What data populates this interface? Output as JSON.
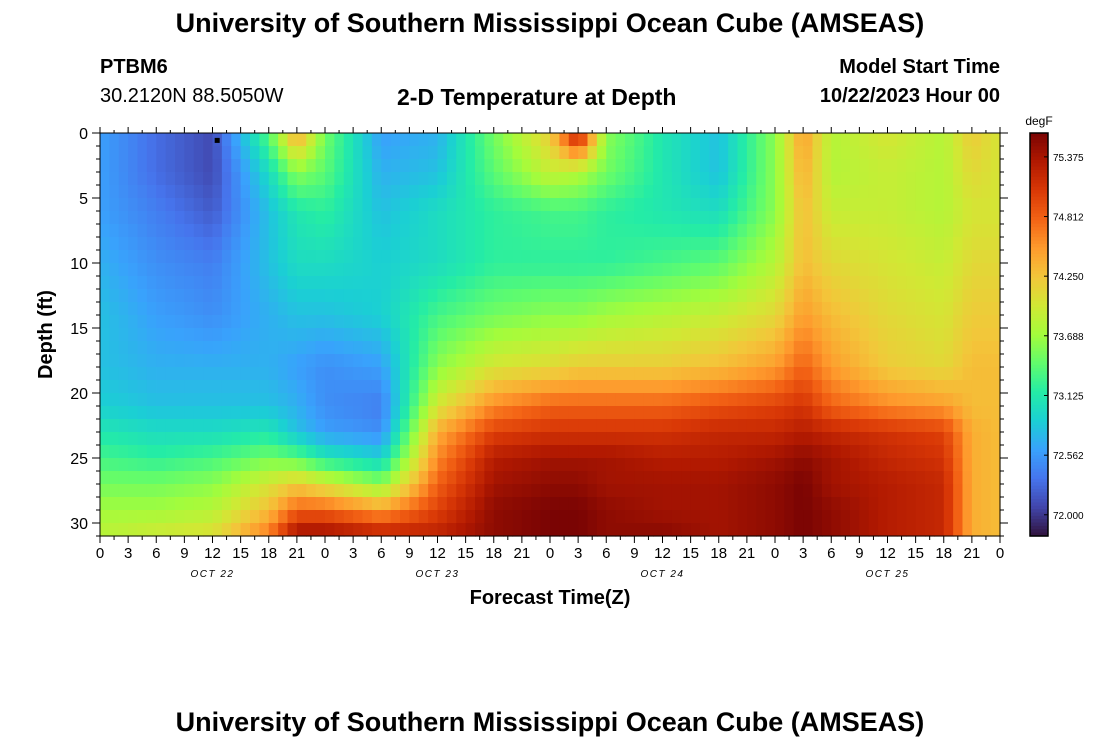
{
  "header": {
    "title": "University of Southern Mississippi Ocean Cube (AMSEAS)",
    "station": "PTBM6",
    "coordinates": "30.2120N  88.5050W",
    "subtitle": "2-D Temperature at Depth",
    "model_start_label": "Model Start Time",
    "model_start_value": "10/22/2023 Hour 00",
    "repeated_title": "University of Southern Mississippi Ocean Cube (AMSEAS)"
  },
  "chart_data": {
    "type": "heatmap",
    "xlabel": "Forecast Time(Z)",
    "ylabel": "Depth (ft)",
    "x_range_hours": [
      0,
      96
    ],
    "y_range_ft": [
      0,
      31
    ],
    "y_inverted": true,
    "x_ticks": [
      "0",
      "3",
      "6",
      "9",
      "12",
      "15",
      "18",
      "21",
      "0",
      "3",
      "6",
      "9",
      "12",
      "15",
      "18",
      "21",
      "0",
      "3",
      "6",
      "9",
      "12",
      "15",
      "18",
      "21",
      "0",
      "3",
      "6",
      "9",
      "12",
      "15",
      "18",
      "21",
      "0"
    ],
    "y_ticks": [
      0,
      5,
      10,
      15,
      20,
      25,
      30
    ],
    "day_labels": [
      "OCT 22",
      "OCT 23",
      "OCT 24",
      "OCT 25"
    ],
    "colorbar": {
      "unit": "degF",
      "min": 71.8,
      "max": 75.6,
      "ticks": [
        "75.375",
        "74.812",
        "74.250",
        "73.688",
        "73.125",
        "72.562",
        "72.000"
      ],
      "colors": [
        "#30123b",
        "#4145ab",
        "#4675ed",
        "#39a2fc",
        "#1bcfd4",
        "#24eca6",
        "#61fc6c",
        "#a4fc3b",
        "#d1e834",
        "#f3c63a",
        "#fe9b2d",
        "#f36315",
        "#d93806",
        "#b11901",
        "#7a0403"
      ]
    },
    "depth_levels_ft": [
      0,
      3,
      6,
      10,
      14,
      18,
      21,
      23,
      25,
      27,
      29,
      30.5
    ],
    "time_hours": [
      0,
      6,
      12,
      18,
      21,
      24,
      30,
      36,
      42,
      48,
      51,
      54,
      60,
      66,
      72,
      75,
      78,
      84,
      90,
      93,
      96
    ],
    "values_degF": [
      [
        72.6,
        72.3,
        72.1,
        73.4,
        74.5,
        73.5,
        72.6,
        72.7,
        73.5,
        74.2,
        75.4,
        73.6,
        73.1,
        72.8,
        73.6,
        74.5,
        73.8,
        74.0,
        73.8,
        74.2,
        74.0
      ],
      [
        72.6,
        72.3,
        72.1,
        73.0,
        73.6,
        73.4,
        72.7,
        72.8,
        73.4,
        73.9,
        73.8,
        73.5,
        73.1,
        72.8,
        73.6,
        74.4,
        73.8,
        73.9,
        73.8,
        74.1,
        74.0
      ],
      [
        72.6,
        72.4,
        72.2,
        72.8,
        73.1,
        73.2,
        72.8,
        73.0,
        73.2,
        73.3,
        73.3,
        73.2,
        73.1,
        73.0,
        73.6,
        74.3,
        73.9,
        73.9,
        73.8,
        74.0,
        74.0
      ],
      [
        72.7,
        72.5,
        72.4,
        72.8,
        73.0,
        73.0,
        72.9,
        73.0,
        73.2,
        73.2,
        73.2,
        73.2,
        73.3,
        73.4,
        73.8,
        74.3,
        74.1,
        74.0,
        73.9,
        74.1,
        74.1
      ],
      [
        72.8,
        72.6,
        72.5,
        72.7,
        72.8,
        72.8,
        72.9,
        73.3,
        73.5,
        73.6,
        73.6,
        73.7,
        73.8,
        73.9,
        74.1,
        74.5,
        74.3,
        74.1,
        74.0,
        74.2,
        74.2
      ],
      [
        72.8,
        72.7,
        72.7,
        72.7,
        72.6,
        72.5,
        72.6,
        73.6,
        74.0,
        74.1,
        74.2,
        74.2,
        74.2,
        74.3,
        74.5,
        74.8,
        74.5,
        74.2,
        74.1,
        74.3,
        74.3
      ],
      [
        72.9,
        72.8,
        72.8,
        72.8,
        72.7,
        72.5,
        72.4,
        74.0,
        74.6,
        74.8,
        74.8,
        74.8,
        74.8,
        74.9,
        75.0,
        75.1,
        74.8,
        74.6,
        74.5,
        74.3,
        74.3
      ],
      [
        73.1,
        73.0,
        73.0,
        73.1,
        72.8,
        72.6,
        72.5,
        74.4,
        75.0,
        75.1,
        75.1,
        75.1,
        75.1,
        75.2,
        75.2,
        75.3,
        75.2,
        75.1,
        75.0,
        74.4,
        74.3
      ],
      [
        73.3,
        73.2,
        73.3,
        73.5,
        73.4,
        73.1,
        72.9,
        74.6,
        75.3,
        75.4,
        75.4,
        75.4,
        75.3,
        75.3,
        75.4,
        75.5,
        75.4,
        75.2,
        75.1,
        74.4,
        74.3
      ],
      [
        73.5,
        73.5,
        73.6,
        74.0,
        74.2,
        74.0,
        73.6,
        74.8,
        75.4,
        75.5,
        75.5,
        75.4,
        75.4,
        75.4,
        75.5,
        75.6,
        75.4,
        75.3,
        75.2,
        74.4,
        74.3
      ],
      [
        73.7,
        73.7,
        73.8,
        74.3,
        74.8,
        74.8,
        74.5,
        75.0,
        75.5,
        75.6,
        75.6,
        75.5,
        75.4,
        75.4,
        75.5,
        75.6,
        75.5,
        75.3,
        75.2,
        74.4,
        74.3
      ],
      [
        73.8,
        73.9,
        74.0,
        74.6,
        75.3,
        75.3,
        75.1,
        75.2,
        75.5,
        75.6,
        75.6,
        75.5,
        75.5,
        75.4,
        75.5,
        75.6,
        75.5,
        75.3,
        75.2,
        74.4,
        74.3
      ]
    ],
    "marker": {
      "time_hours": 12.5,
      "depth_ft": 0.3
    }
  }
}
